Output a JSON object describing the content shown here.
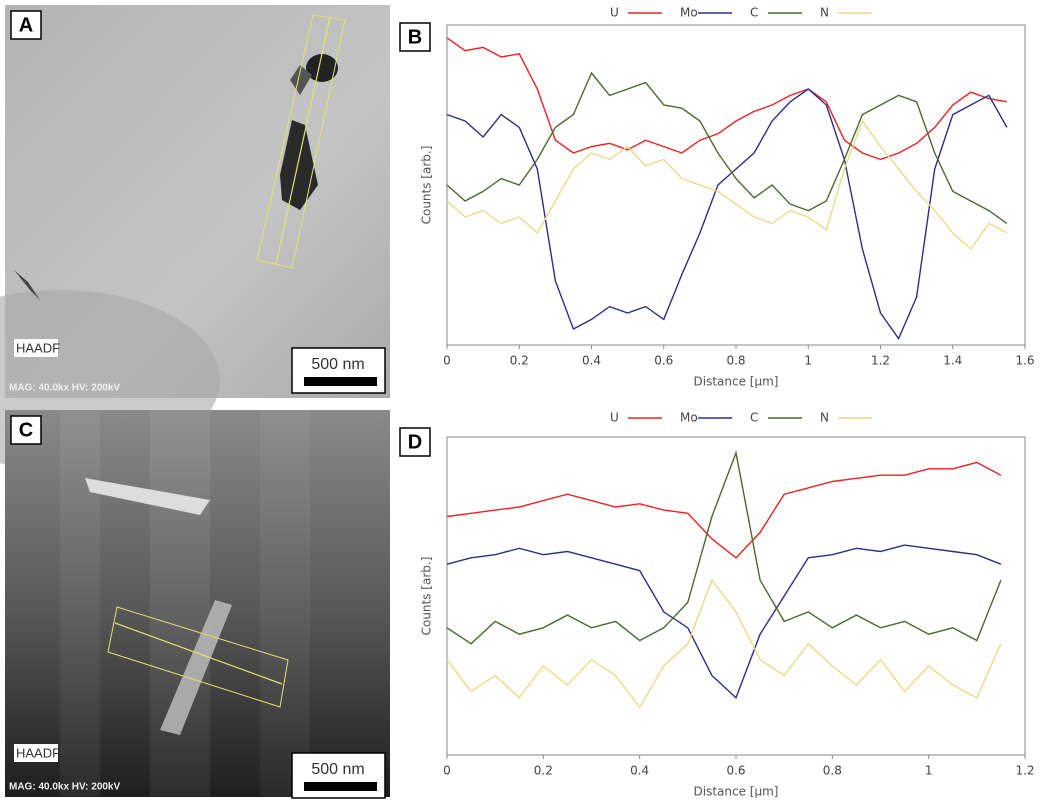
{
  "images": [
    {
      "label": "A",
      "mode": "HAADF",
      "scale": "500 nm",
      "info": "MAG: 40.0kx  HV: 200kV"
    },
    {
      "label": "C",
      "mode": "HAADF",
      "scale": "500 nm",
      "info": "MAG: 40.0kx  HV: 200kV"
    }
  ],
  "chart_data": [
    {
      "type": "line",
      "label": "B",
      "xlabel": "Distance [µm]",
      "ylabel": "Counts [arb.]",
      "x": [
        0,
        0.05,
        0.1,
        0.15,
        0.2,
        0.25,
        0.3,
        0.35,
        0.4,
        0.45,
        0.5,
        0.55,
        0.6,
        0.65,
        0.7,
        0.75,
        0.8,
        0.85,
        0.9,
        0.95,
        1.0,
        1.05,
        1.1,
        1.15,
        1.2,
        1.25,
        1.3,
        1.35,
        1.4,
        1.45,
        1.5,
        1.55
      ],
      "series": [
        {
          "name": "U",
          "color": "#ee2222",
          "values": [
            96,
            92,
            93,
            90,
            91,
            80,
            64,
            60,
            62,
            63,
            61,
            64,
            62,
            60,
            64,
            66,
            70,
            73,
            75,
            78,
            80,
            76,
            64,
            60,
            58,
            60,
            63,
            68,
            75,
            79,
            77,
            76
          ]
        },
        {
          "name": "Mo",
          "color": "#2e2e8a",
          "values": [
            72,
            70,
            65,
            72,
            68,
            55,
            20,
            5,
            8,
            12,
            10,
            12,
            8,
            22,
            35,
            50,
            55,
            60,
            70,
            76,
            80,
            75,
            58,
            30,
            10,
            2,
            15,
            55,
            72,
            75,
            78,
            68
          ]
        },
        {
          "name": "C",
          "color": "#4a6b2e",
          "values": [
            50,
            45,
            48,
            52,
            50,
            58,
            68,
            72,
            85,
            78,
            80,
            82,
            75,
            74,
            70,
            60,
            52,
            46,
            50,
            44,
            42,
            45,
            58,
            72,
            75,
            78,
            76,
            60,
            48,
            45,
            42,
            38
          ]
        },
        {
          "name": "N",
          "color": "#ecd98a",
          "values": [
            45,
            40,
            42,
            38,
            40,
            35,
            45,
            55,
            60,
            58,
            62,
            56,
            58,
            52,
            50,
            48,
            44,
            40,
            38,
            42,
            40,
            36,
            55,
            70,
            62,
            55,
            48,
            42,
            35,
            30,
            38,
            35
          ]
        }
      ],
      "xlim": [
        0,
        1.6
      ],
      "xticks": [
        0,
        0.2,
        0.4,
        0.6,
        0.8,
        1,
        1.2,
        1.4,
        1.6
      ],
      "ylim": [
        0,
        100
      ]
    },
    {
      "type": "line",
      "label": "D",
      "xlabel": "Distance [µm]",
      "ylabel": "Counts [arb.]",
      "x": [
        0,
        0.05,
        0.1,
        0.15,
        0.2,
        0.25,
        0.3,
        0.35,
        0.4,
        0.45,
        0.5,
        0.55,
        0.6,
        0.65,
        0.7,
        0.75,
        0.8,
        0.85,
        0.9,
        0.95,
        1.0,
        1.05,
        1.1,
        1.15
      ],
      "series": [
        {
          "name": "U",
          "color": "#ee2222",
          "values": [
            75,
            76,
            77,
            78,
            80,
            82,
            80,
            78,
            79,
            77,
            76,
            68,
            62,
            70,
            82,
            84,
            86,
            87,
            88,
            88,
            90,
            90,
            92,
            88
          ]
        },
        {
          "name": "Mo",
          "color": "#2e2e8a",
          "values": [
            60,
            62,
            63,
            65,
            63,
            64,
            62,
            60,
            58,
            45,
            40,
            25,
            18,
            38,
            50,
            62,
            63,
            65,
            64,
            66,
            65,
            64,
            63,
            60
          ]
        },
        {
          "name": "C",
          "color": "#4a6b2e",
          "values": [
            40,
            35,
            42,
            38,
            40,
            44,
            40,
            42,
            36,
            40,
            48,
            75,
            95,
            55,
            42,
            45,
            40,
            44,
            40,
            42,
            38,
            40,
            36,
            55
          ]
        },
        {
          "name": "N",
          "color": "#ecd98a",
          "values": [
            30,
            20,
            25,
            18,
            28,
            22,
            30,
            25,
            15,
            28,
            35,
            55,
            45,
            30,
            25,
            35,
            28,
            22,
            30,
            20,
            28,
            22,
            18,
            35
          ]
        }
      ],
      "xlim": [
        0,
        1.2
      ],
      "xticks": [
        0,
        0.2,
        0.4,
        0.6,
        0.8,
        1,
        1.2
      ],
      "ylim": [
        0,
        100
      ]
    }
  ]
}
